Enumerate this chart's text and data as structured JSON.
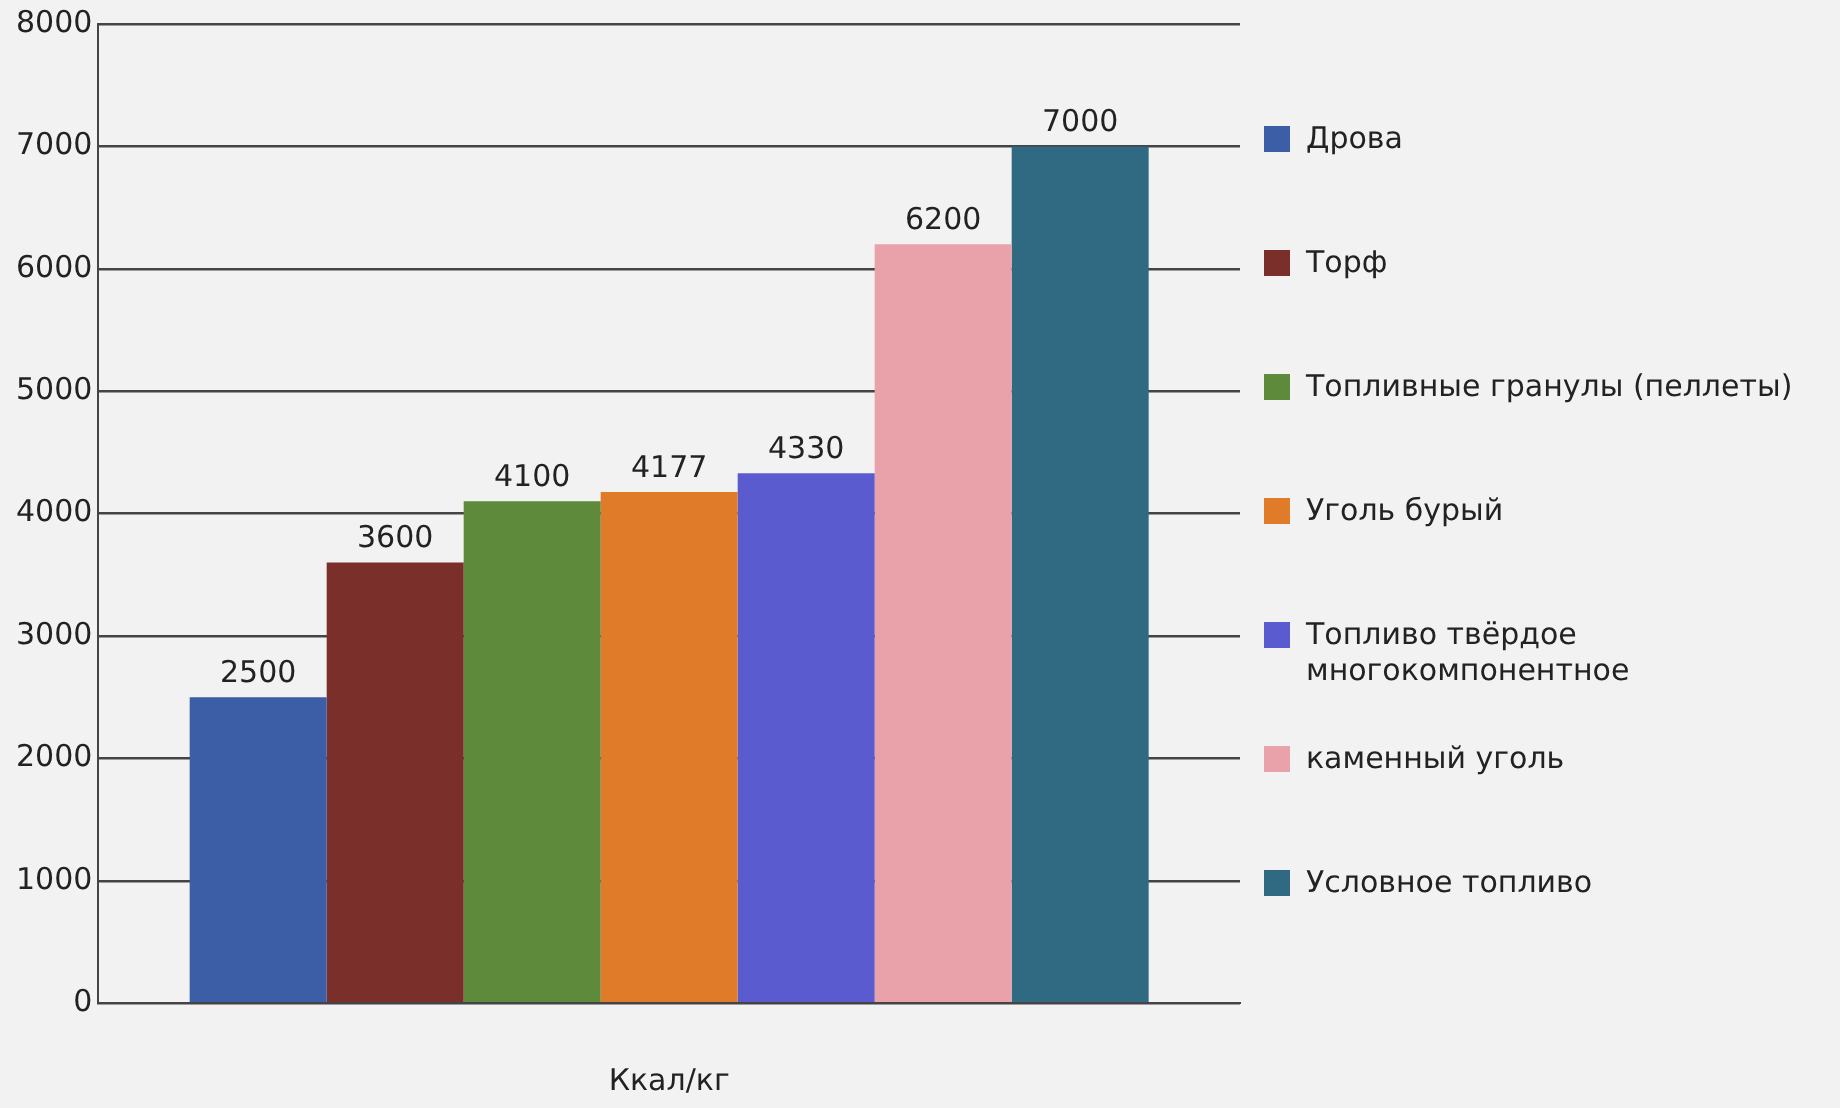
{
  "chart_data": {
    "type": "bar",
    "xlabel": "Ккал/кг",
    "categories": [
      null
    ],
    "series": [
      {
        "name": "Дрова",
        "color": "#3b5ea6",
        "values": [
          2500
        ]
      },
      {
        "name": "Торф",
        "color": "#7a2f2b",
        "values": [
          3600
        ]
      },
      {
        "name": "Топливные гранулы (пеллеты)",
        "color": "#5e8a3b",
        "values": [
          4100
        ]
      },
      {
        "name": "Уголь бурый",
        "color": "#e07b2a",
        "values": [
          4177
        ]
      },
      {
        "name": "Топливо твёрдое многокомпонентное",
        "color": "#5b5bd0",
        "values": [
          4330
        ]
      },
      {
        "name": "каменный уголь",
        "color": "#e9a2aa",
        "values": [
          6200
        ]
      },
      {
        "name": "Условное топливо",
        "color": "#2f6a82",
        "values": [
          7000
        ]
      }
    ],
    "ylim": [
      0,
      8000
    ],
    "yticks": [
      0,
      1000,
      2000,
      3000,
      4000,
      5000,
      6000,
      7000,
      8000
    ],
    "grid": "y",
    "legend": "right",
    "data_labels": true
  }
}
